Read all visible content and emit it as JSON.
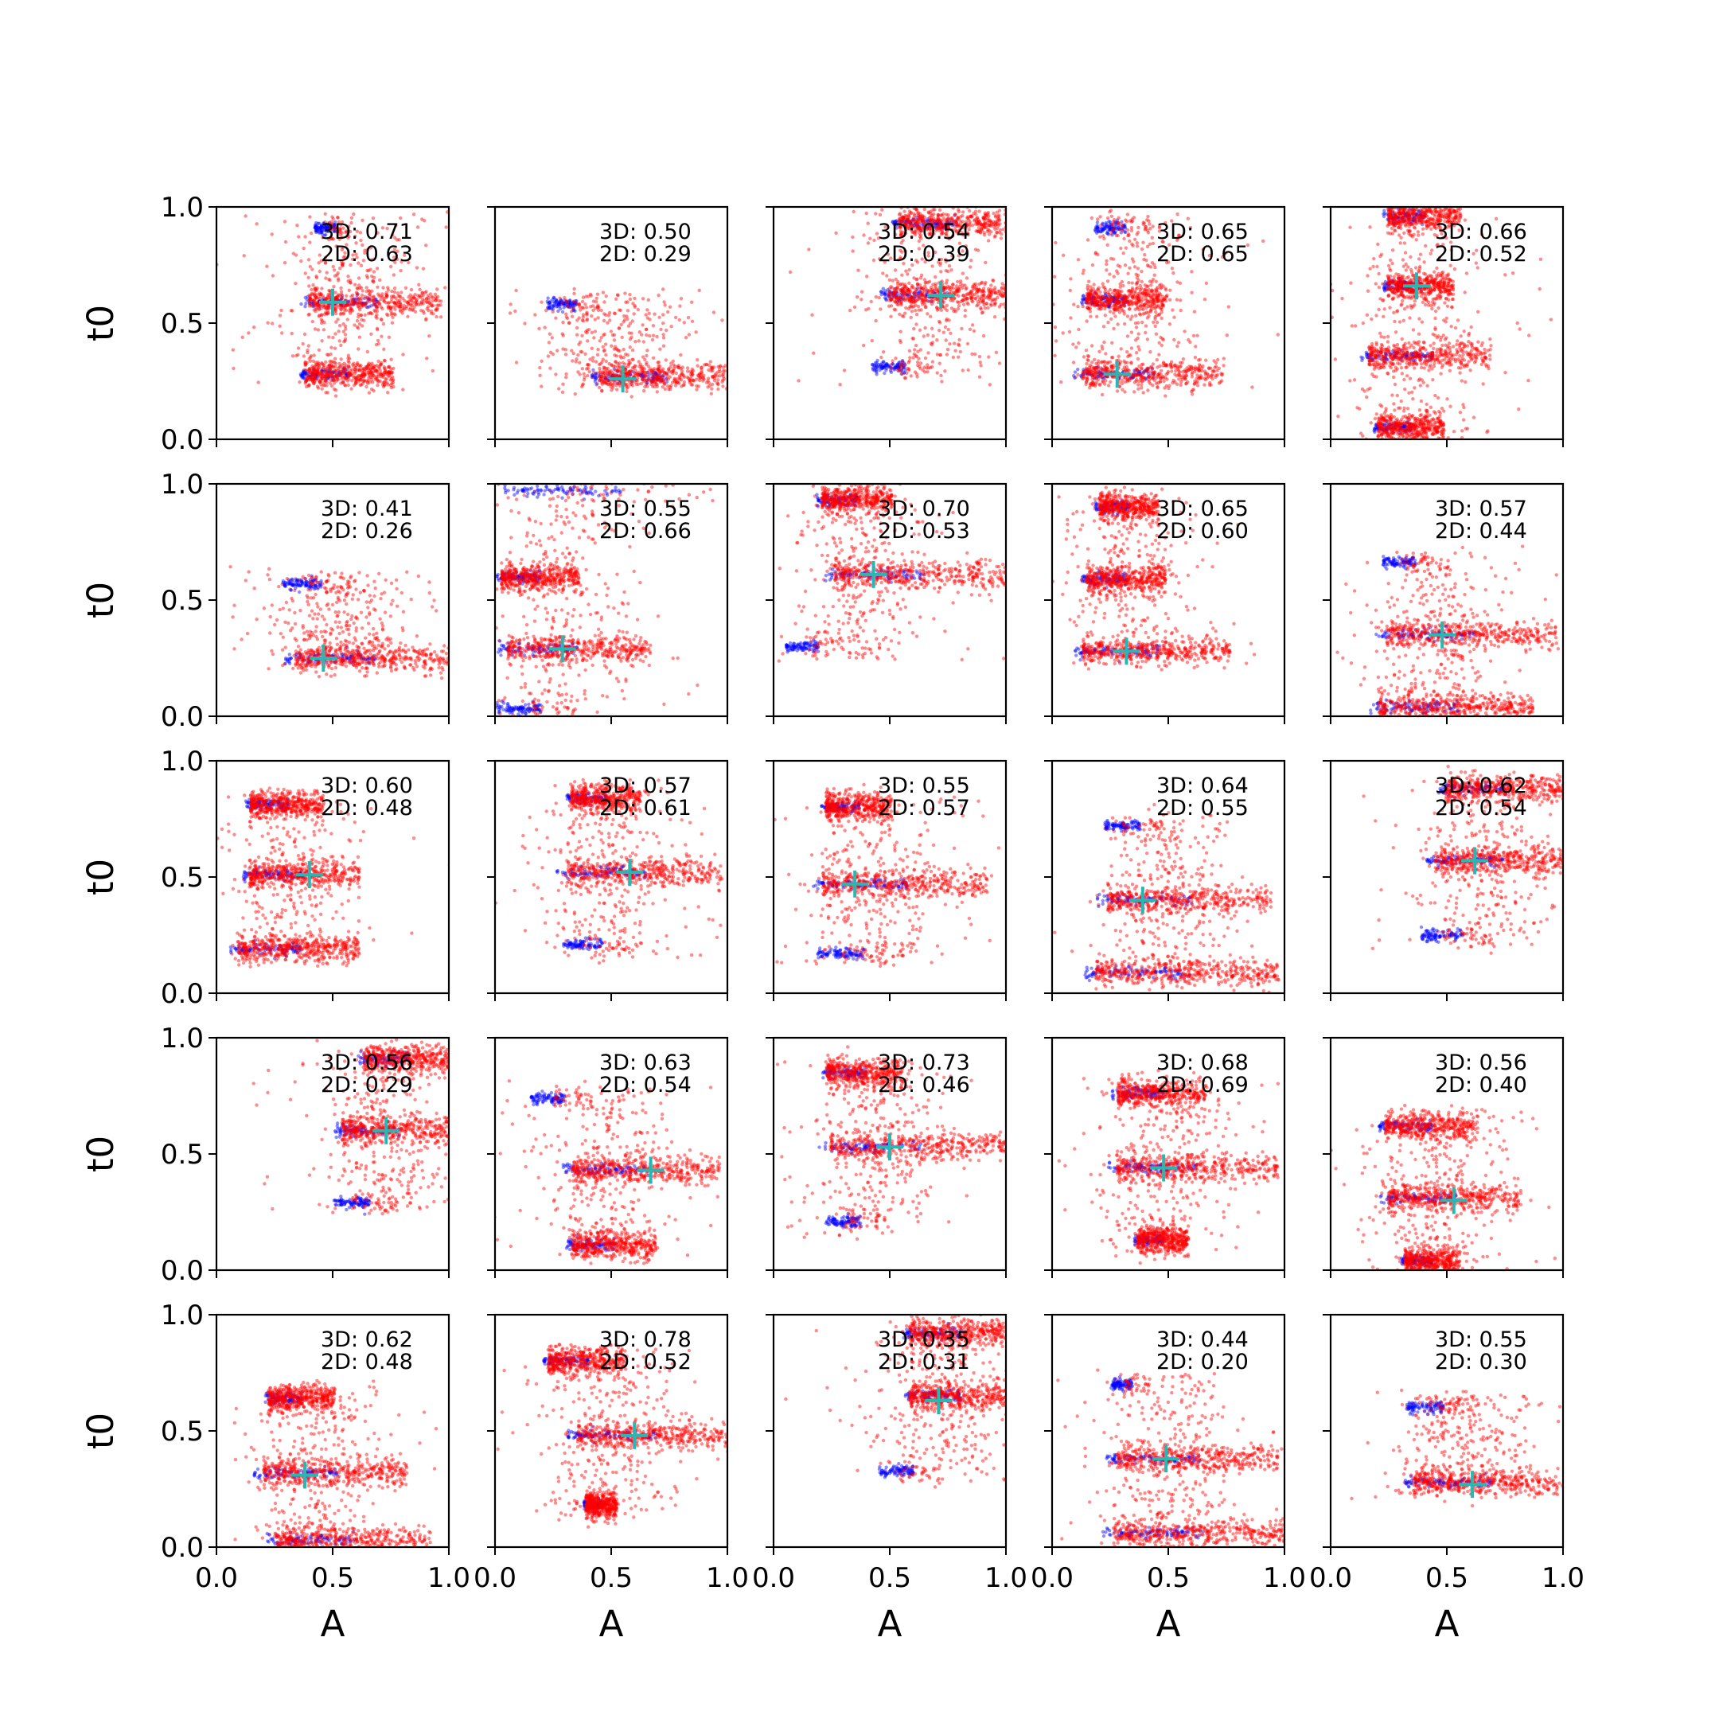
{
  "chart_data": {
    "type": "scatter",
    "layout": {
      "rows": 5,
      "cols": 5
    },
    "xlabel": "A",
    "ylabel": "t0",
    "xlim": [
      0,
      1
    ],
    "ylim": [
      0,
      1
    ],
    "xticks": [
      "0.0",
      "0.5",
      "1.0"
    ],
    "yticks": [
      "0.0",
      "0.5",
      "1.0"
    ],
    "colors": {
      "primary_points": "#ff0000",
      "secondary_points": "#0000ff",
      "marker": "#2ab7b2",
      "axes": "#000000"
    },
    "marker_symbol": "plus",
    "panels": [
      {
        "label_3d": "3D: 0.71",
        "label_2d": "2D: 0.63",
        "marker": [
          0.5,
          0.59
        ],
        "clusters": [
          {
            "y": 0.91,
            "x0": 0.42,
            "x1": 0.58,
            "type": "blue"
          },
          {
            "y": 0.59,
            "x0": 0.35,
            "x1": 0.95,
            "type": "red"
          },
          {
            "y": 0.28,
            "x0": 0.35,
            "x1": 0.75,
            "type": "red"
          }
        ]
      },
      {
        "label_3d": "3D: 0.50",
        "label_2d": "2D: 0.29",
        "marker": [
          0.55,
          0.26
        ],
        "clusters": [
          {
            "y": 0.58,
            "x0": 0.22,
            "x1": 0.45,
            "type": "blue"
          },
          {
            "y": 0.27,
            "x0": 0.4,
            "x1": 1.0,
            "type": "red"
          }
        ]
      },
      {
        "label_3d": "3D: 0.54",
        "label_2d": "2D: 0.39",
        "marker": [
          0.72,
          0.62
        ],
        "clusters": [
          {
            "y": 0.93,
            "x0": 0.5,
            "x1": 1.0,
            "type": "red"
          },
          {
            "y": 0.62,
            "x0": 0.45,
            "x1": 1.0,
            "type": "red"
          },
          {
            "y": 0.31,
            "x0": 0.42,
            "x1": 0.68,
            "type": "blue"
          }
        ]
      },
      {
        "label_3d": "3D: 0.65",
        "label_2d": "2D: 0.65",
        "marker": [
          0.28,
          0.28
        ],
        "clusters": [
          {
            "y": 0.91,
            "x0": 0.18,
            "x1": 0.42,
            "type": "blue"
          },
          {
            "y": 0.6,
            "x0": 0.12,
            "x1": 0.48,
            "type": "red"
          },
          {
            "y": 0.28,
            "x0": 0.08,
            "x1": 0.72,
            "type": "red"
          }
        ]
      },
      {
        "label_3d": "3D: 0.66",
        "label_2d": "2D: 0.52",
        "marker": [
          0.37,
          0.66
        ],
        "clusters": [
          {
            "y": 0.96,
            "x0": 0.22,
            "x1": 0.55,
            "type": "red"
          },
          {
            "y": 0.66,
            "x0": 0.22,
            "x1": 0.52,
            "type": "red"
          },
          {
            "y": 0.36,
            "x0": 0.12,
            "x1": 0.68,
            "type": "red"
          },
          {
            "y": 0.05,
            "x0": 0.18,
            "x1": 0.48,
            "type": "red"
          }
        ]
      },
      {
        "label_3d": "3D: 0.41",
        "label_2d": "2D: 0.26",
        "marker": [
          0.46,
          0.25
        ],
        "clusters": [
          {
            "y": 0.57,
            "x0": 0.28,
            "x1": 0.58,
            "type": "blue"
          },
          {
            "y": 0.25,
            "x0": 0.28,
            "x1": 1.0,
            "type": "red"
          }
        ]
      },
      {
        "label_3d": "3D: 0.55",
        "label_2d": "2D: 0.66",
        "marker": [
          0.29,
          0.29
        ],
        "clusters": [
          {
            "y": 0.97,
            "x0": 0.0,
            "x1": 0.95,
            "type": "blue"
          },
          {
            "y": 0.6,
            "x0": 0.0,
            "x1": 0.35,
            "type": "red"
          },
          {
            "y": 0.29,
            "x0": 0.0,
            "x1": 0.65,
            "type": "red"
          },
          {
            "y": 0.03,
            "x0": 0.0,
            "x1": 0.35,
            "type": "blue"
          }
        ]
      },
      {
        "label_3d": "3D: 0.70",
        "label_2d": "2D: 0.53",
        "marker": [
          0.43,
          0.61
        ],
        "clusters": [
          {
            "y": 0.93,
            "x0": 0.18,
            "x1": 0.5,
            "type": "red"
          },
          {
            "y": 0.61,
            "x0": 0.2,
            "x1": 1.0,
            "type": "red"
          },
          {
            "y": 0.3,
            "x0": 0.05,
            "x1": 0.3,
            "type": "blue"
          }
        ]
      },
      {
        "label_3d": "3D: 0.65",
        "label_2d": "2D: 0.60",
        "marker": [
          0.32,
          0.28
        ],
        "clusters": [
          {
            "y": 0.9,
            "x0": 0.18,
            "x1": 0.45,
            "type": "red"
          },
          {
            "y": 0.59,
            "x0": 0.12,
            "x1": 0.48,
            "type": "red"
          },
          {
            "y": 0.28,
            "x0": 0.08,
            "x1": 0.75,
            "type": "red"
          }
        ]
      },
      {
        "label_3d": "3D: 0.57",
        "label_2d": "2D: 0.44",
        "marker": [
          0.48,
          0.35
        ],
        "clusters": [
          {
            "y": 0.66,
            "x0": 0.22,
            "x1": 0.48,
            "type": "blue"
          },
          {
            "y": 0.35,
            "x0": 0.18,
            "x1": 0.95,
            "type": "red"
          },
          {
            "y": 0.04,
            "x0": 0.15,
            "x1": 0.85,
            "type": "red"
          }
        ]
      },
      {
        "label_3d": "3D: 0.60",
        "label_2d": "2D: 0.48",
        "marker": [
          0.4,
          0.51
        ],
        "clusters": [
          {
            "y": 0.81,
            "x0": 0.12,
            "x1": 0.45,
            "type": "red"
          },
          {
            "y": 0.51,
            "x0": 0.1,
            "x1": 0.6,
            "type": "red"
          },
          {
            "y": 0.19,
            "x0": 0.05,
            "x1": 0.6,
            "type": "red"
          }
        ]
      },
      {
        "label_3d": "3D: 0.57",
        "label_2d": "2D: 0.61",
        "marker": [
          0.58,
          0.52
        ],
        "clusters": [
          {
            "y": 0.84,
            "x0": 0.3,
            "x1": 0.62,
            "type": "red"
          },
          {
            "y": 0.52,
            "x0": 0.25,
            "x1": 0.95,
            "type": "red"
          },
          {
            "y": 0.21,
            "x0": 0.28,
            "x1": 0.6,
            "type": "blue"
          }
        ]
      },
      {
        "label_3d": "3D: 0.55",
        "label_2d": "2D: 0.57",
        "marker": [
          0.35,
          0.47
        ],
        "clusters": [
          {
            "y": 0.8,
            "x0": 0.2,
            "x1": 0.5,
            "type": "red"
          },
          {
            "y": 0.47,
            "x0": 0.15,
            "x1": 0.9,
            "type": "red"
          },
          {
            "y": 0.17,
            "x0": 0.18,
            "x1": 0.55,
            "type": "blue"
          }
        ]
      },
      {
        "label_3d": "3D: 0.64",
        "label_2d": "2D: 0.55",
        "marker": [
          0.39,
          0.4
        ],
        "clusters": [
          {
            "y": 0.72,
            "x0": 0.22,
            "x1": 0.5,
            "type": "blue"
          },
          {
            "y": 0.4,
            "x0": 0.18,
            "x1": 0.92,
            "type": "red"
          },
          {
            "y": 0.09,
            "x0": 0.12,
            "x1": 0.95,
            "type": "red"
          }
        ]
      },
      {
        "label_3d": "3D: 0.62",
        "label_2d": "2D: 0.54",
        "marker": [
          0.62,
          0.57
        ],
        "clusters": [
          {
            "y": 0.88,
            "x0": 0.45,
            "x1": 1.0,
            "type": "red"
          },
          {
            "y": 0.57,
            "x0": 0.4,
            "x1": 1.0,
            "type": "red"
          },
          {
            "y": 0.25,
            "x0": 0.38,
            "x1": 0.72,
            "type": "blue"
          }
        ]
      },
      {
        "label_3d": "3D: 0.56",
        "label_2d": "2D: 0.29",
        "marker": [
          0.73,
          0.6
        ],
        "clusters": [
          {
            "y": 0.91,
            "x0": 0.6,
            "x1": 1.0,
            "type": "red"
          },
          {
            "y": 0.6,
            "x0": 0.5,
            "x1": 1.0,
            "type": "red"
          },
          {
            "y": 0.29,
            "x0": 0.5,
            "x1": 0.78,
            "type": "blue"
          }
        ]
      },
      {
        "label_3d": "3D: 0.63",
        "label_2d": "2D: 0.54",
        "marker": [
          0.67,
          0.43
        ],
        "clusters": [
          {
            "y": 0.74,
            "x0": 0.15,
            "x1": 0.42,
            "type": "blue"
          },
          {
            "y": 0.43,
            "x0": 0.28,
            "x1": 0.95,
            "type": "red"
          },
          {
            "y": 0.11,
            "x0": 0.3,
            "x1": 0.68,
            "type": "red"
          }
        ]
      },
      {
        "label_3d": "3D: 0.73",
        "label_2d": "2D: 0.46",
        "marker": [
          0.5,
          0.53
        ],
        "clusters": [
          {
            "y": 0.85,
            "x0": 0.2,
            "x1": 0.55,
            "type": "red"
          },
          {
            "y": 0.53,
            "x0": 0.18,
            "x1": 0.98,
            "type": "red"
          },
          {
            "y": 0.21,
            "x0": 0.22,
            "x1": 0.5,
            "type": "blue"
          }
        ]
      },
      {
        "label_3d": "3D: 0.68",
        "label_2d": "2D: 0.69",
        "marker": [
          0.48,
          0.44
        ],
        "clusters": [
          {
            "y": 0.76,
            "x0": 0.25,
            "x1": 0.65,
            "type": "red"
          },
          {
            "y": 0.44,
            "x0": 0.22,
            "x1": 0.95,
            "type": "red"
          },
          {
            "y": 0.13,
            "x0": 0.35,
            "x1": 0.58,
            "type": "red"
          }
        ]
      },
      {
        "label_3d": "3D: 0.56",
        "label_2d": "2D: 0.40",
        "marker": [
          0.53,
          0.3
        ],
        "clusters": [
          {
            "y": 0.62,
            "x0": 0.2,
            "x1": 0.62,
            "type": "red"
          },
          {
            "y": 0.31,
            "x0": 0.2,
            "x1": 0.8,
            "type": "red"
          },
          {
            "y": 0.04,
            "x0": 0.3,
            "x1": 0.55,
            "type": "red"
          }
        ]
      },
      {
        "label_3d": "3D: 0.62",
        "label_2d": "2D: 0.48",
        "marker": [
          0.38,
          0.31
        ],
        "clusters": [
          {
            "y": 0.64,
            "x0": 0.2,
            "x1": 0.5,
            "type": "red"
          },
          {
            "y": 0.32,
            "x0": 0.15,
            "x1": 0.8,
            "type": "red"
          },
          {
            "y": 0.03,
            "x0": 0.2,
            "x1": 0.9,
            "type": "red"
          }
        ]
      },
      {
        "label_3d": "3D: 0.78",
        "label_2d": "2D: 0.52",
        "marker": [
          0.6,
          0.48
        ],
        "clusters": [
          {
            "y": 0.8,
            "x0": 0.2,
            "x1": 0.55,
            "type": "red"
          },
          {
            "y": 0.48,
            "x0": 0.3,
            "x1": 1.0,
            "type": "red"
          },
          {
            "y": 0.18,
            "x0": 0.38,
            "x1": 0.52,
            "type": "red"
          }
        ]
      },
      {
        "label_3d": "3D: 0.35",
        "label_2d": "2D: 0.31",
        "marker": [
          0.71,
          0.63
        ],
        "clusters": [
          {
            "y": 0.92,
            "x0": 0.55,
            "x1": 1.0,
            "type": "red"
          },
          {
            "y": 0.65,
            "x0": 0.55,
            "x1": 1.0,
            "type": "red"
          },
          {
            "y": 0.33,
            "x0": 0.45,
            "x1": 0.72,
            "type": "blue"
          }
        ]
      },
      {
        "label_3d": "3D: 0.44",
        "label_2d": "2D: 0.20",
        "marker": [
          0.49,
          0.38
        ],
        "clusters": [
          {
            "y": 0.7,
            "x0": 0.25,
            "x1": 0.42,
            "type": "blue"
          },
          {
            "y": 0.38,
            "x0": 0.22,
            "x1": 0.95,
            "type": "red"
          },
          {
            "y": 0.06,
            "x0": 0.2,
            "x1": 1.0,
            "type": "red"
          }
        ]
      },
      {
        "label_3d": "3D: 0.55",
        "label_2d": "2D: 0.30",
        "marker": [
          0.61,
          0.27
        ],
        "clusters": [
          {
            "y": 0.6,
            "x0": 0.32,
            "x1": 0.62,
            "type": "blue"
          },
          {
            "y": 0.28,
            "x0": 0.3,
            "x1": 1.0,
            "type": "red"
          }
        ]
      }
    ]
  }
}
